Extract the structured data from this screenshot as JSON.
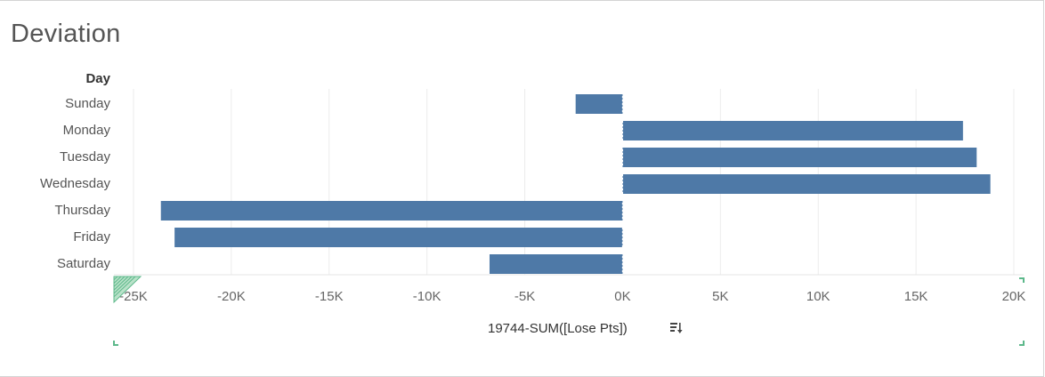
{
  "title": "Deviation",
  "chart_data": {
    "type": "bar",
    "orientation": "horizontal",
    "row_header": "Day",
    "categories": [
      "Sunday",
      "Monday",
      "Tuesday",
      "Wednesday",
      "Thursday",
      "Friday",
      "Saturday"
    ],
    "values": [
      -2400,
      17400,
      18100,
      18800,
      -23600,
      -22900,
      -6800
    ],
    "xlabel": "19744-SUM([Lose Pts])",
    "xlim": [
      -26000,
      20500
    ],
    "ticks": [
      -25000,
      -20000,
      -15000,
      -10000,
      -5000,
      0,
      5000,
      10000,
      15000,
      20000
    ],
    "tick_labels": [
      "-25K",
      "-20K",
      "-15K",
      "-10K",
      "-5K",
      "0K",
      "5K",
      "10K",
      "15K",
      "20K"
    ],
    "bar_color": "#4e79a7",
    "grid": true
  },
  "icons": {
    "sort": "sort-descending-icon"
  }
}
